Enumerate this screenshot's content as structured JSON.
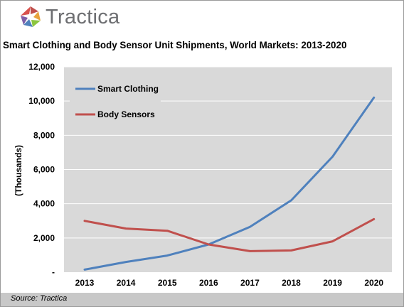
{
  "logo": {
    "text": "Tractica"
  },
  "source": "Source: Tractica",
  "colors": {
    "plot_bg": "#d9d9d9",
    "grid": "#ffffff",
    "smart_clothing": "#4f81bd",
    "body_sensors": "#c0504d"
  },
  "chart_data": {
    "type": "line",
    "title": "Smart Clothing and Body Sensor Unit Shipments, World Markets: 2013-2020",
    "xlabel": "",
    "ylabel": "(Thousands)",
    "categories": [
      "2013",
      "2014",
      "2015",
      "2016",
      "2017",
      "2018",
      "2019",
      "2020"
    ],
    "ylim": [
      0,
      12000
    ],
    "yticks": [
      0,
      2000,
      4000,
      6000,
      8000,
      10000,
      12000
    ],
    "ytick_labels": [
      "-",
      "2,000",
      "4,000",
      "6,000",
      "8,000",
      "10,000",
      "12,000"
    ],
    "grid": true,
    "legend_position": "top-left",
    "series": [
      {
        "name": "Smart Clothing",
        "color": "#4f81bd",
        "values": [
          150,
          600,
          970,
          1620,
          2650,
          4200,
          6750,
          10200
        ]
      },
      {
        "name": "Body Sensors",
        "color": "#c0504d",
        "values": [
          3000,
          2550,
          2420,
          1620,
          1230,
          1270,
          1800,
          3100
        ]
      }
    ]
  }
}
